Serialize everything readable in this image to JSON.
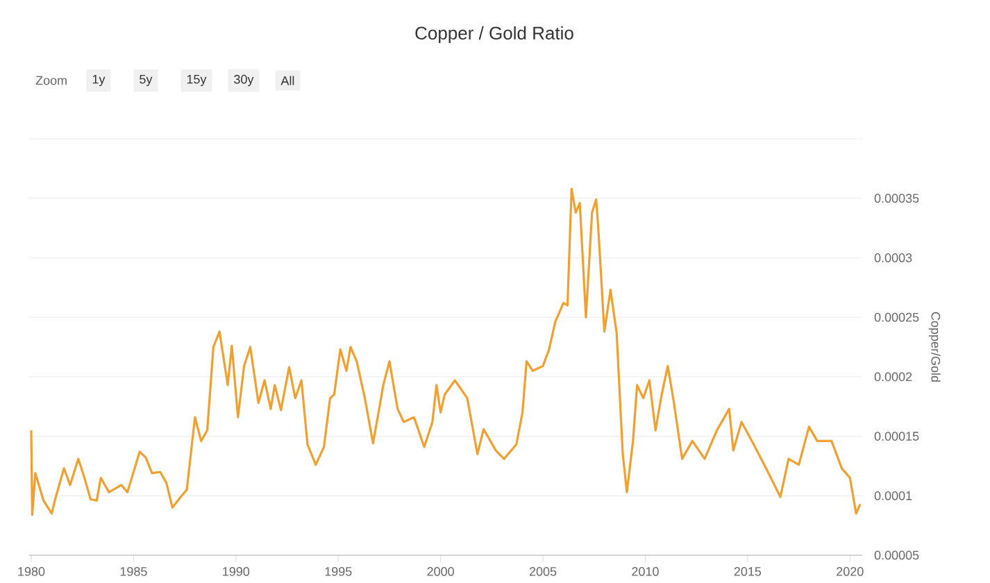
{
  "chart_data": {
    "type": "line",
    "title": "Copper / Gold Ratio",
    "ylabel": "Copper/Gold",
    "color": "#f0a030",
    "grid": "y",
    "annotations": [
      "Zoom",
      "1y",
      "5y",
      "15y",
      "30y",
      "All"
    ],
    "xlim": [
      1979.9,
      2020.6
    ],
    "xticks": [
      1980,
      1985,
      1990,
      1995,
      2000,
      2005,
      2010,
      2015,
      2020
    ],
    "ylim": [
      5e-05,
      0.0004
    ],
    "yticks": [
      {
        "value": 5e-05,
        "label": "0.00005"
      },
      {
        "value": 0.0001,
        "label": "0.0001"
      },
      {
        "value": 0.00015,
        "label": "0.00015"
      },
      {
        "value": 0.0002,
        "label": "0.0002"
      },
      {
        "value": 0.00025,
        "label": "0.00025"
      },
      {
        "value": 0.0003,
        "label": "0.0003"
      },
      {
        "value": 0.00035,
        "label": "0.00035"
      },
      {
        "value": 0.0004,
        "label": null
      }
    ],
    "x": [
      1980.0,
      1980.05,
      1980.2,
      1980.6,
      1981.0,
      1981.2,
      1981.6,
      1981.9,
      1982.3,
      1982.6,
      1982.9,
      1983.2,
      1983.4,
      1983.8,
      1984.4,
      1984.7,
      1985.3,
      1985.6,
      1985.9,
      1986.3,
      1986.6,
      1986.9,
      1987.3,
      1987.6,
      1988.0,
      1988.3,
      1988.6,
      1988.9,
      1989.2,
      1989.6,
      1989.8,
      1990.1,
      1990.4,
      1990.7,
      1991.1,
      1991.4,
      1991.7,
      1991.9,
      1992.2,
      1992.6,
      1992.9,
      1993.2,
      1993.5,
      1993.9,
      1994.3,
      1994.6,
      1994.8,
      1995.1,
      1995.4,
      1995.6,
      1995.9,
      1996.3,
      1996.7,
      1997.0,
      1997.2,
      1997.5,
      1997.9,
      1998.2,
      1998.7,
      1999.2,
      1999.6,
      1999.8,
      2000.0,
      2000.2,
      2000.7,
      2001.3,
      2001.8,
      2002.1,
      2002.7,
      2003.1,
      2003.7,
      2004.0,
      2004.2,
      2004.5,
      2005.0,
      2005.3,
      2005.6,
      2006.0,
      2006.2,
      2006.4,
      2006.6,
      2006.8,
      2007.1,
      2007.4,
      2007.6,
      2007.7,
      2008.0,
      2008.3,
      2008.6,
      2008.9,
      2009.1,
      2009.4,
      2009.6,
      2009.9,
      2010.2,
      2010.5,
      2010.8,
      2011.1,
      2011.4,
      2011.8,
      2012.3,
      2012.9,
      2013.5,
      2014.1,
      2014.3,
      2014.7,
      2015.3,
      2015.9,
      2016.6,
      2017.0,
      2017.5,
      2018.0,
      2018.4,
      2019.1,
      2019.6,
      2020.0,
      2020.3,
      2020.5
    ],
    "values": [
      0.000155,
      8.4e-05,
      0.000119,
      9.6e-05,
      8.5e-05,
      9.9e-05,
      0.000123,
      0.000109,
      0.000131,
      0.000115,
      9.7e-05,
      9.6e-05,
      0.000115,
      0.000103,
      0.000109,
      0.000103,
      0.000137,
      0.000132,
      0.000119,
      0.00012,
      0.000111,
      9e-05,
      9.9e-05,
      0.000105,
      0.000166,
      0.000146,
      0.000155,
      0.000225,
      0.000238,
      0.000193,
      0.000226,
      0.000166,
      0.000209,
      0.000225,
      0.000178,
      0.000197,
      0.000173,
      0.000193,
      0.000172,
      0.000208,
      0.000182,
      0.000197,
      0.000143,
      0.000126,
      0.000141,
      0.000182,
      0.000185,
      0.000223,
      0.000205,
      0.000225,
      0.000213,
      0.000182,
      0.000144,
      0.000173,
      0.000193,
      0.000213,
      0.000173,
      0.000162,
      0.000166,
      0.000141,
      0.000162,
      0.000193,
      0.00017,
      0.000185,
      0.000197,
      0.000182,
      0.000135,
      0.000156,
      0.000138,
      0.000131,
      0.000143,
      0.00017,
      0.000213,
      0.000205,
      0.000209,
      0.000223,
      0.000246,
      0.000262,
      0.00026,
      0.000358,
      0.000338,
      0.000346,
      0.00025,
      0.000338,
      0.000349,
      0.000326,
      0.000238,
      0.000273,
      0.000237,
      0.000135,
      0.000103,
      0.000146,
      0.000193,
      0.000182,
      0.000197,
      0.000155,
      0.000185,
      0.000209,
      0.000178,
      0.000131,
      0.000146,
      0.000131,
      0.000155,
      0.000173,
      0.000138,
      0.000162,
      0.000143,
      0.000123,
      9.9e-05,
      0.000131,
      0.000126,
      0.000158,
      0.000146,
      0.000146,
      0.000123,
      0.000115,
      8.5e-05,
      9.3e-05
    ]
  }
}
